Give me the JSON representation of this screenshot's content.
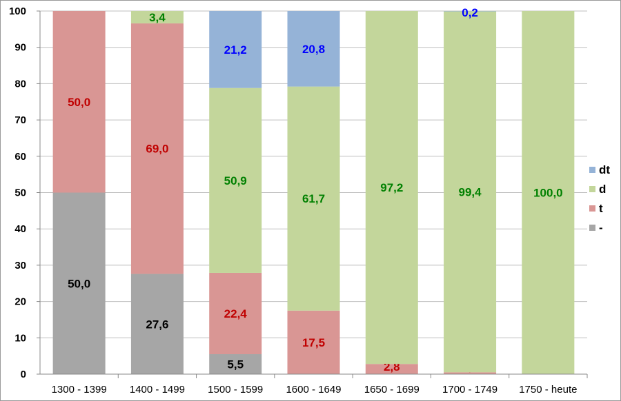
{
  "chart_data": {
    "type": "bar",
    "stacked": true,
    "title": "",
    "xlabel": "",
    "ylabel": "",
    "ylim": [
      0,
      100
    ],
    "yticks": [
      0,
      10,
      20,
      30,
      40,
      50,
      60,
      70,
      80,
      90,
      100
    ],
    "grid": true,
    "legend_position": "right",
    "categories": [
      "1300 - 1399",
      "1400 - 1499",
      "1500 - 1599",
      "1600 - 1649",
      "1650 - 1699",
      "1700 - 1749",
      "1750 - heute"
    ],
    "series": [
      {
        "name": "-",
        "color": "#a6a6a6",
        "label_color": "#000000",
        "values": [
          50.0,
          27.6,
          5.5,
          null,
          null,
          null,
          null
        ],
        "labels": [
          "50,0",
          "27,6",
          "5,5",
          null,
          null,
          null,
          null
        ]
      },
      {
        "name": "t",
        "color": "#d99694",
        "label_color": "#c00000",
        "values": [
          50.0,
          69.0,
          22.4,
          17.5,
          2.8,
          0.5,
          null
        ],
        "labels": [
          "50,0",
          "69,0",
          "22,4",
          "17,5",
          "2,8",
          "0,5",
          null
        ]
      },
      {
        "name": "d",
        "color": "#c3d69b",
        "label_color": "#008000",
        "values": [
          null,
          3.4,
          50.9,
          61.7,
          97.2,
          99.4,
          100.0
        ],
        "labels": [
          null,
          "3,4",
          "50,9",
          "61,7",
          "97,2",
          "99,4",
          "100,0"
        ]
      },
      {
        "name": "dt",
        "color": "#95b3d7",
        "label_color": "#0000ff",
        "values": [
          null,
          null,
          21.2,
          20.8,
          null,
          0.2,
          null
        ],
        "labels": [
          null,
          null,
          "21,2",
          "20,8",
          null,
          "0,2",
          null
        ]
      }
    ]
  }
}
